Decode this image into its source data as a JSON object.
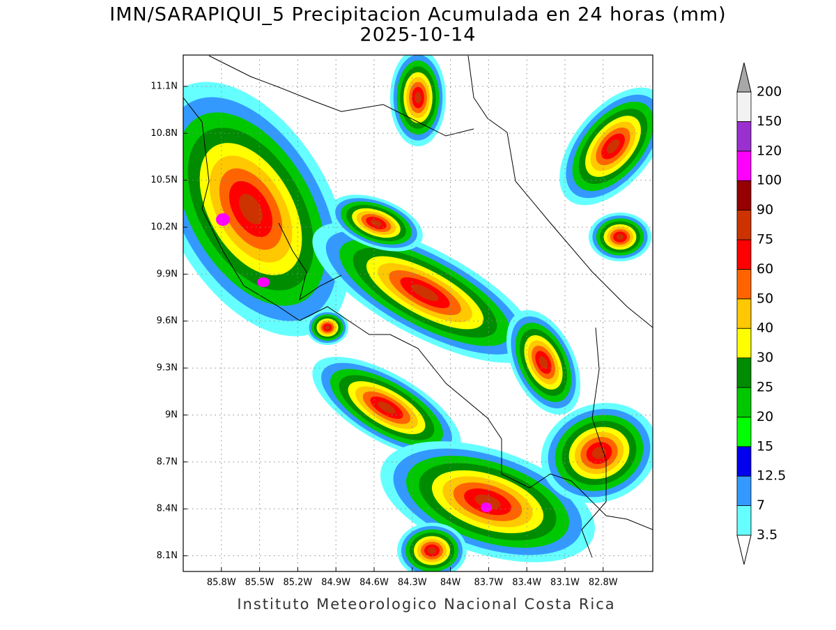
{
  "chart_data": {
    "type": "contour",
    "title": "IMN/SARAPIQUI_5 Precipitacion Acumulada en 24 horas (mm)",
    "subtitle": "2025-10-14",
    "footer": "Instituto Meteorologico Nacional Costa Rica",
    "xlim": [
      -86.1,
      -82.41
    ],
    "ylim": [
      8.0,
      11.3
    ],
    "xticks": [
      {
        "value": -85.8,
        "label": "85.8W"
      },
      {
        "value": -85.5,
        "label": "85.5W"
      },
      {
        "value": -85.2,
        "label": "85.2W"
      },
      {
        "value": -84.9,
        "label": "84.9W"
      },
      {
        "value": -84.6,
        "label": "84.6W"
      },
      {
        "value": -84.3,
        "label": "84.3W"
      },
      {
        "value": -84.0,
        "label": "84W"
      },
      {
        "value": -83.7,
        "label": "83.7W"
      },
      {
        "value": -83.4,
        "label": "83.4W"
      },
      {
        "value": -83.1,
        "label": "83.1W"
      },
      {
        "value": -82.8,
        "label": "82.8W"
      }
    ],
    "yticks": [
      {
        "value": 8.1,
        "label": "8.1N"
      },
      {
        "value": 8.4,
        "label": "8.4N"
      },
      {
        "value": 8.7,
        "label": "8.7N"
      },
      {
        "value": 9.0,
        "label": "9N"
      },
      {
        "value": 9.3,
        "label": "9.3N"
      },
      {
        "value": 9.6,
        "label": "9.6N"
      },
      {
        "value": 9.9,
        "label": "9.9N"
      },
      {
        "value": 10.2,
        "label": "10.2N"
      },
      {
        "value": 10.5,
        "label": "10.5N"
      },
      {
        "value": 10.8,
        "label": "10.8N"
      },
      {
        "value": 11.1,
        "label": "11.1N"
      }
    ],
    "grid": true,
    "colorbar": {
      "levels": [
        3.5,
        7,
        12.5,
        15,
        20,
        25,
        30,
        40,
        50,
        60,
        75,
        90,
        100,
        120,
        150,
        200
      ],
      "colors": [
        "#ffffff",
        "#66ffff",
        "#3399ff",
        "#0000ee",
        "#00ff00",
        "#00c800",
        "#008c00",
        "#ffff00",
        "#ffc800",
        "#ff6400",
        "#ff0000",
        "#cc3300",
        "#960000",
        "#ff00ff",
        "#9b30d0",
        "#f2f2f2",
        "#a8a8a8"
      ]
    }
  }
}
